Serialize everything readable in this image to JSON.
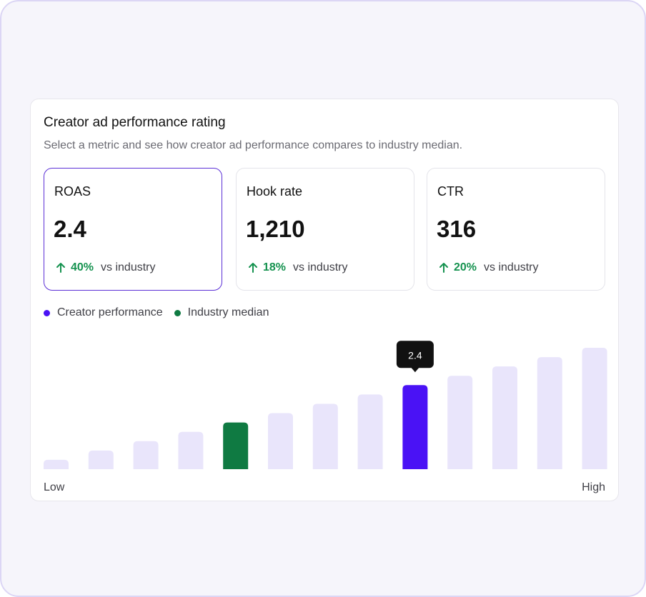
{
  "card": {
    "title": "Creator ad performance rating",
    "subtitle": "Select a metric and see how creator ad performance compares to industry median."
  },
  "metrics": [
    {
      "label": "ROAS",
      "value": "2.4",
      "change": "40%",
      "suffix": "vs industry",
      "selected": true
    },
    {
      "label": "Hook rate",
      "value": "1,210",
      "change": "18%",
      "suffix": "vs industry",
      "selected": false
    },
    {
      "label": "CTR",
      "value": "316",
      "change": "20%",
      "suffix": "vs industry",
      "selected": false
    }
  ],
  "legend": {
    "creator": "Creator performance",
    "industry": "Industry median"
  },
  "colors": {
    "creator": "#4a12f5",
    "industry": "#0f7a42",
    "bar": "#e9e5fb",
    "positive": "#15924f",
    "tooltip": "#111111"
  },
  "chart_data": {
    "type": "bar",
    "values": [
      1,
      2,
      3,
      4,
      5,
      6,
      7,
      8,
      9,
      10,
      11,
      12,
      13
    ],
    "highlight_creator_index": 8,
    "highlight_industry_index": 4,
    "tooltip": "2.4",
    "xlabel_low": "Low",
    "xlabel_high": "High",
    "ylim": [
      0,
      13
    ],
    "grid": false,
    "legend_position": "top-left"
  }
}
